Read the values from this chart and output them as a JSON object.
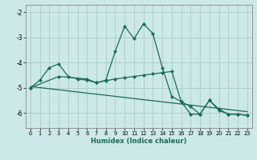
{
  "xlabel": "Humidex (Indice chaleur)",
  "xlim": [
    -0.5,
    23.5
  ],
  "ylim": [
    -6.6,
    -1.7
  ],
  "yticks": [
    -6,
    -5,
    -4,
    -3,
    -2
  ],
  "xticks": [
    0,
    1,
    2,
    3,
    4,
    5,
    6,
    7,
    8,
    9,
    10,
    11,
    12,
    13,
    14,
    15,
    16,
    17,
    18,
    19,
    20,
    21,
    22,
    23
  ],
  "bg_color": "#cce8e8",
  "grid_color": "#aacccc",
  "line_color": "#1a6b5a",
  "line1_x": [
    0,
    1,
    2,
    3,
    4,
    5,
    6,
    7,
    8,
    9,
    10,
    11,
    12,
    13,
    14,
    15,
    16,
    17,
    18,
    19,
    20,
    21,
    22,
    23
  ],
  "line1_y": [
    -5.0,
    -4.7,
    -4.2,
    -4.05,
    -4.55,
    -4.65,
    -4.7,
    -4.8,
    -4.7,
    -3.55,
    -2.55,
    -3.05,
    -2.45,
    -2.85,
    -4.2,
    -5.35,
    -5.55,
    -6.05,
    -6.05,
    -5.5,
    -5.85,
    -6.05,
    -6.05,
    -6.1
  ],
  "line2_x": [
    0,
    3,
    6,
    7,
    8,
    9,
    10,
    11,
    12,
    13,
    14,
    15,
    16,
    17,
    18,
    19,
    20,
    21,
    22,
    23
  ],
  "line2_y": [
    -5.0,
    -4.55,
    -4.65,
    -4.8,
    -4.72,
    -4.65,
    -4.6,
    -4.55,
    -4.5,
    -4.45,
    -4.4,
    -4.35,
    -5.55,
    -5.75,
    -6.05,
    -5.5,
    -5.9,
    -6.05,
    -6.05,
    -6.1
  ],
  "line3_x": [
    0,
    23
  ],
  "line3_y": [
    -4.95,
    -5.95
  ]
}
